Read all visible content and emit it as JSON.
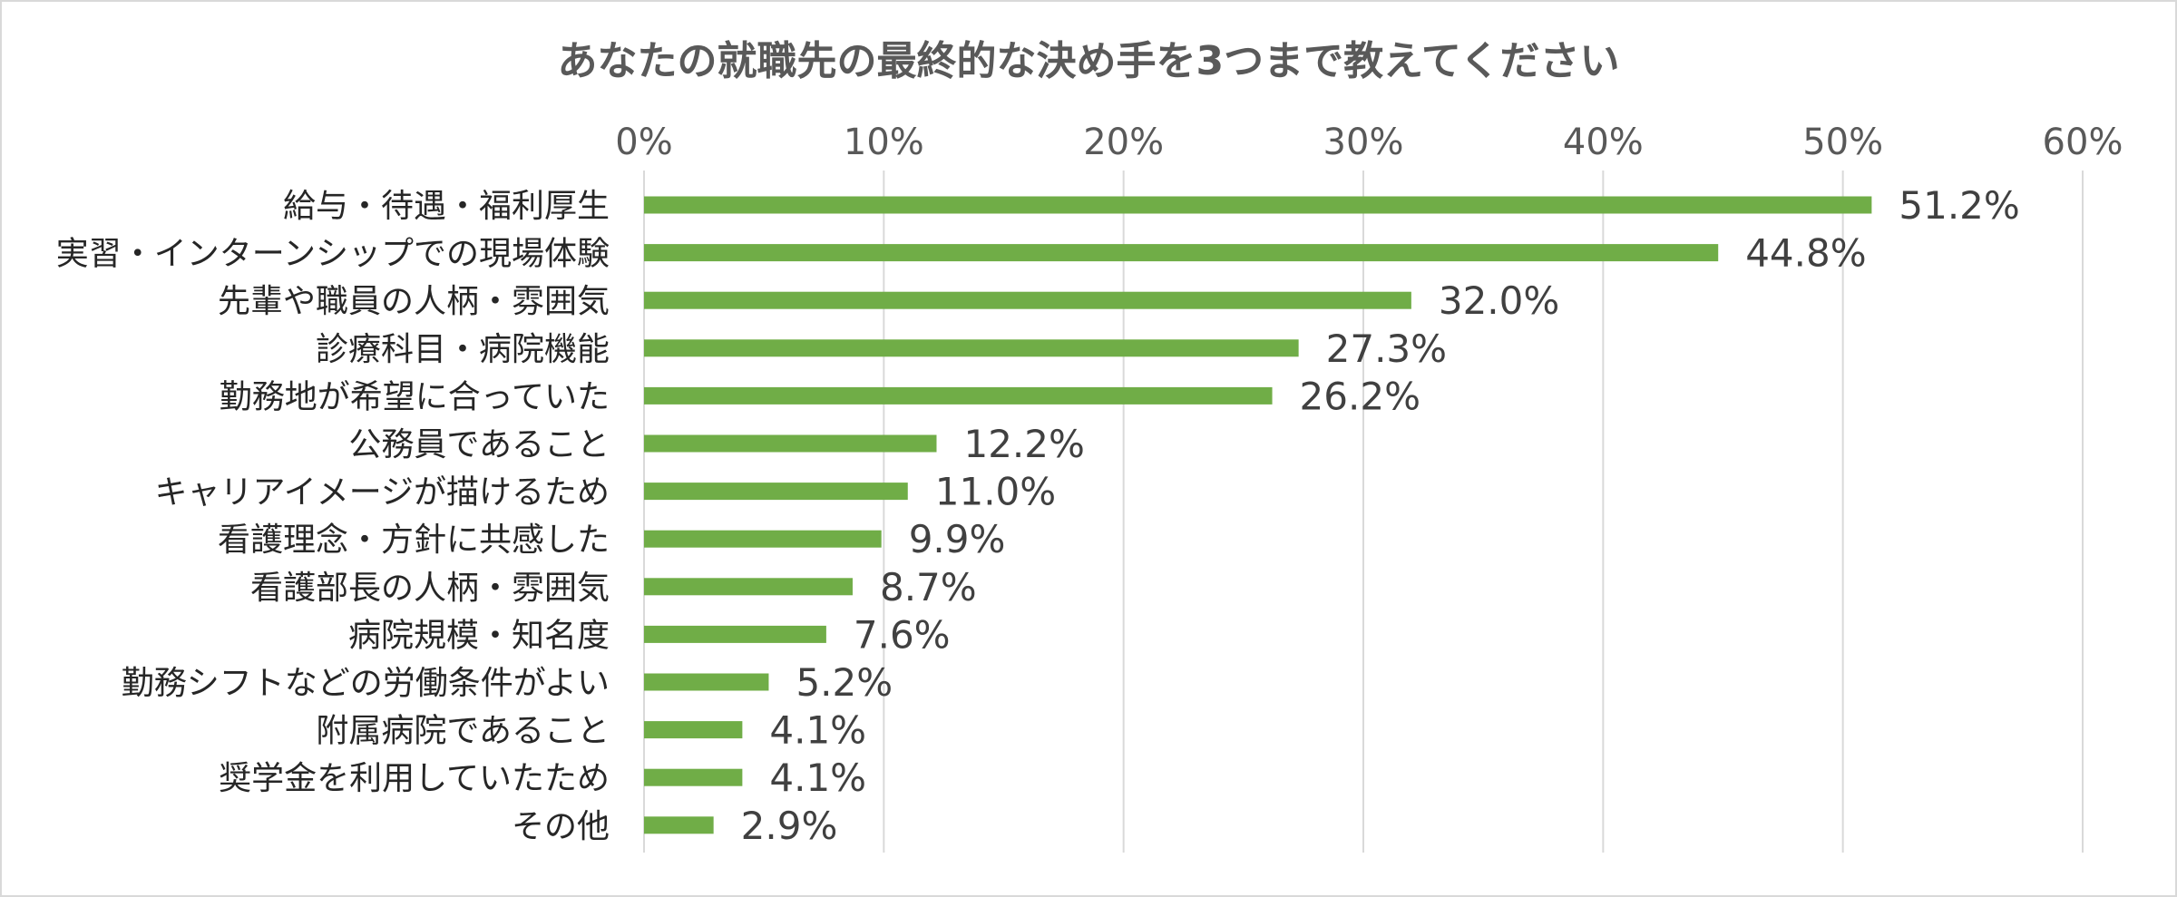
{
  "chart_data": {
    "type": "bar",
    "orientation": "horizontal",
    "title": "あなたの就職先の最終的な決め手を3つまで教えてください",
    "xlim": [
      0,
      60
    ],
    "xticks": [
      "0%",
      "10%",
      "20%",
      "30%",
      "40%",
      "50%",
      "60%"
    ],
    "xaxis_position": "top",
    "grid": true,
    "categories": [
      "給与・待遇・福利厚生",
      "実習・インターンシップでの現場体験",
      "先輩や職員の人柄・雰囲気",
      "診療科目・病院機能",
      "勤務地が希望に合っていた",
      "公務員であること",
      "キャリアイメージが描けるため",
      "看護理念・方針に共感した",
      "看護部長の人柄・雰囲気",
      "病院規模・知名度",
      "勤務シフトなどの労働条件がよい",
      "附属病院であること",
      "奨学金を利用していたため",
      "その他"
    ],
    "values": [
      51.2,
      44.8,
      32.0,
      27.3,
      26.2,
      12.2,
      11.0,
      9.9,
      8.7,
      7.6,
      5.2,
      4.1,
      4.1,
      2.9
    ],
    "data_labels": [
      "51.2%",
      "44.8%",
      "32.0%",
      "27.3%",
      "26.2%",
      "12.2%",
      "11.0%",
      "9.9%",
      "8.7%",
      "7.6%",
      "5.2%",
      "4.1%",
      "4.1%",
      "2.9%"
    ],
    "bar_color": "#70ad47",
    "grid_color": "#d9d9d9"
  }
}
